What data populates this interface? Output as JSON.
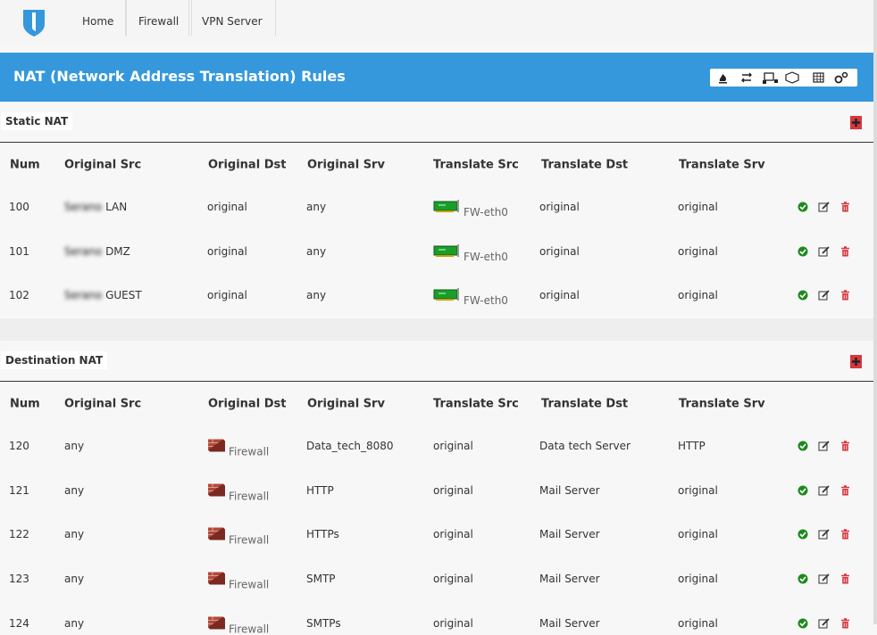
{
  "nav": [
    "Home",
    "Firewall",
    "VPN Server"
  ],
  "header": {
    "title": "NAT (Network Address Translation) Rules"
  },
  "sections": [
    {
      "title": "Static NAT",
      "columns": [
        "Num",
        "Original Src",
        "Original Dst",
        "Original Srv",
        "Translate Src",
        "Translate Dst",
        "Translate Srv"
      ],
      "rows": [
        [
          "100",
          [
            "Serano",
            "LAN"
          ],
          "original",
          "any",
          "FW-eth0",
          "original",
          "original"
        ],
        [
          "101",
          [
            "Serano",
            "DMZ"
          ],
          "original",
          "any",
          "FW-eth0",
          "original",
          "original"
        ],
        [
          "102",
          [
            "Serano",
            "GUEST"
          ],
          "original",
          "any",
          "FW-eth0",
          "original",
          "original"
        ]
      ]
    },
    {
      "title": "Destination NAT",
      "columns": [
        "Num",
        "Original Src",
        "Original Dst",
        "Original Srv",
        "Translate Src",
        "Translate Dst",
        "Translate Srv"
      ],
      "rows": [
        [
          "120",
          "any",
          "Firewall",
          "Data_tech_8080",
          "original",
          "Data tech Server",
          "HTTP"
        ],
        [
          "121",
          "any",
          "Firewall",
          "HTTP",
          "original",
          "Mail Server",
          "original"
        ],
        [
          "122",
          "any",
          "Firewall",
          "HTTPs",
          "original",
          "Mail Server",
          "original"
        ],
        [
          "123",
          "any",
          "Firewall",
          "SMTP",
          "original",
          "Mail Server",
          "original"
        ],
        [
          "124",
          "any",
          "Firewall",
          "SMTPs",
          "original",
          "Mail Server",
          "original"
        ]
      ]
    }
  ]
}
